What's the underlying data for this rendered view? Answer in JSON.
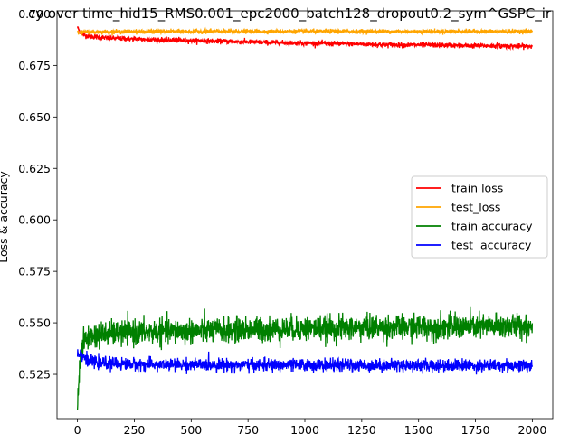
{
  "chart_data": {
    "type": "line",
    "title": "cy over time_hid15_RMS0.001_epc2000_batch128_dropout0.2_sym^GSPC_ir",
    "xlabel": "",
    "ylabel": "Loss & accuracy",
    "xlim": [
      -90,
      2090
    ],
    "ylim": [
      0.5035,
      0.7015
    ],
    "x_ticks": [
      0,
      250,
      500,
      750,
      1000,
      1250,
      1500,
      1750,
      2000
    ],
    "y_ticks": [
      0.525,
      0.55,
      0.575,
      0.6,
      0.625,
      0.65,
      0.675,
      0.7
    ],
    "y_tick_labels": [
      "0.525",
      "0.550",
      "0.575",
      "0.600",
      "0.625",
      "0.650",
      "0.675",
      "0.700"
    ],
    "x_tick_labels": [
      "0",
      "250",
      "500",
      "750",
      "1000",
      "1250",
      "1500",
      "1750",
      "2000"
    ],
    "grid": false,
    "legend_position": "center-right",
    "series": [
      {
        "name": "train loss",
        "color": "#ff0000",
        "x": [
          0,
          10,
          20,
          40,
          60,
          100,
          150,
          200,
          300,
          400,
          500,
          600,
          700,
          800,
          900,
          1000,
          1100,
          1200,
          1300,
          1400,
          1500,
          1600,
          1700,
          1800,
          1900,
          2000
        ],
        "y": [
          0.6935,
          0.6915,
          0.69,
          0.6893,
          0.689,
          0.6885,
          0.6882,
          0.688,
          0.6876,
          0.6873,
          0.687,
          0.6868,
          0.6865,
          0.6862,
          0.686,
          0.6858,
          0.6856,
          0.6854,
          0.6852,
          0.685,
          0.6849,
          0.6848,
          0.6846,
          0.6845,
          0.6844,
          0.6843
        ],
        "noise": 0.0006
      },
      {
        "name": "test_loss",
        "color": "#ffa500",
        "x": [
          0,
          10,
          20,
          40,
          100,
          200,
          400,
          600,
          800,
          1000,
          1200,
          1400,
          1600,
          1800,
          2000
        ],
        "y": [
          0.692,
          0.6908,
          0.691,
          0.6912,
          0.6913,
          0.6914,
          0.6915,
          0.6915,
          0.6915,
          0.6915,
          0.6915,
          0.6915,
          0.6915,
          0.6915,
          0.6915
        ],
        "noise": 0.0005
      },
      {
        "name": "train accuracy",
        "color": "#008000",
        "x": [
          0,
          5,
          10,
          20,
          30,
          40,
          60,
          100,
          200,
          300,
          400,
          500,
          600,
          700,
          800,
          900,
          1000,
          1200,
          1400,
          1600,
          1800,
          1900,
          2000
        ],
        "y": [
          0.511,
          0.52,
          0.53,
          0.538,
          0.541,
          0.5425,
          0.5435,
          0.5445,
          0.545,
          0.5455,
          0.5458,
          0.546,
          0.5462,
          0.5465,
          0.5467,
          0.547,
          0.5472,
          0.5475,
          0.5478,
          0.548,
          0.5482,
          0.5484,
          0.5485
        ],
        "noise": 0.003
      },
      {
        "name": "test  accuracy",
        "color": "#0000ff",
        "x": [
          0,
          10,
          20,
          30,
          40,
          60,
          100,
          200,
          300,
          400,
          500,
          600,
          700,
          800,
          900,
          1000,
          1200,
          1400,
          1600,
          1800,
          2000
        ],
        "y": [
          0.5355,
          0.5355,
          0.5345,
          0.5335,
          0.532,
          0.531,
          0.5305,
          0.53,
          0.5298,
          0.5296,
          0.5296,
          0.5296,
          0.5295,
          0.5295,
          0.5295,
          0.5295,
          0.5294,
          0.5294,
          0.5293,
          0.5293,
          0.5293
        ],
        "noise": 0.0015
      }
    ]
  }
}
